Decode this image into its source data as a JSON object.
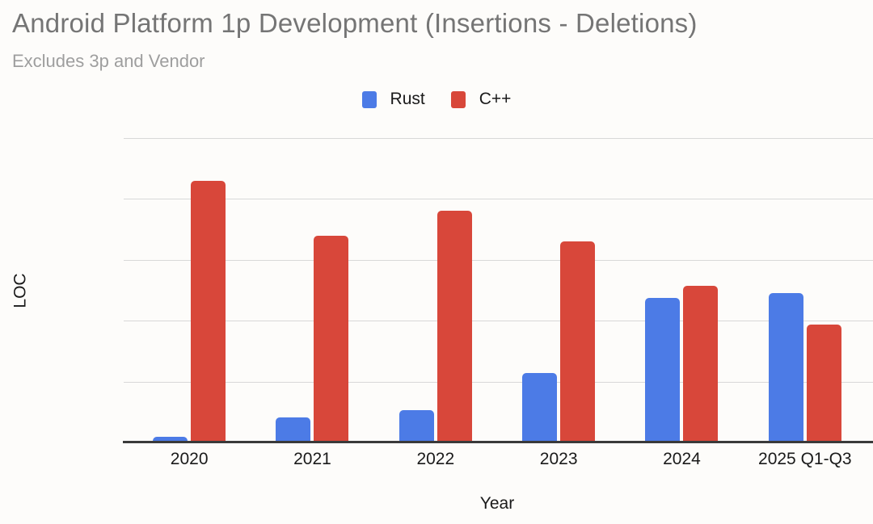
{
  "chart_data": {
    "type": "bar",
    "title": "Android Platform 1p Development (Insertions - Deletions)",
    "subtitle": "Excludes 3p and Vendor",
    "xlabel": "Year",
    "ylabel": "LOC",
    "categories": [
      "2020",
      "2021",
      "2022",
      "2023",
      "2024",
      "2025 Q1-Q3"
    ],
    "series": [
      {
        "name": "Rust",
        "color": "#4c7be6",
        "values": [
          0.09,
          0.41,
          0.53,
          1.14,
          2.37,
          2.45
        ]
      },
      {
        "name": "C++",
        "color": "#d8473a",
        "values": [
          4.3,
          3.4,
          3.81,
          3.3,
          2.58,
          1.94
        ]
      }
    ],
    "ylim": [
      0,
      5
    ],
    "y_tick_labels": [],
    "value_scale": "relative gridline units; y-axis shows no numeric tick labels",
    "grid": true,
    "legend_position": "top-center"
  },
  "colors": {
    "background": "#fdfcfa",
    "title": "#757575",
    "subtitle": "#9e9e9e",
    "axis_text": "#1a1a1a",
    "gridline": "#d8d8d8",
    "baseline": "#3a3a3a",
    "rust": "#4c7be6",
    "cpp": "#d8473a"
  }
}
